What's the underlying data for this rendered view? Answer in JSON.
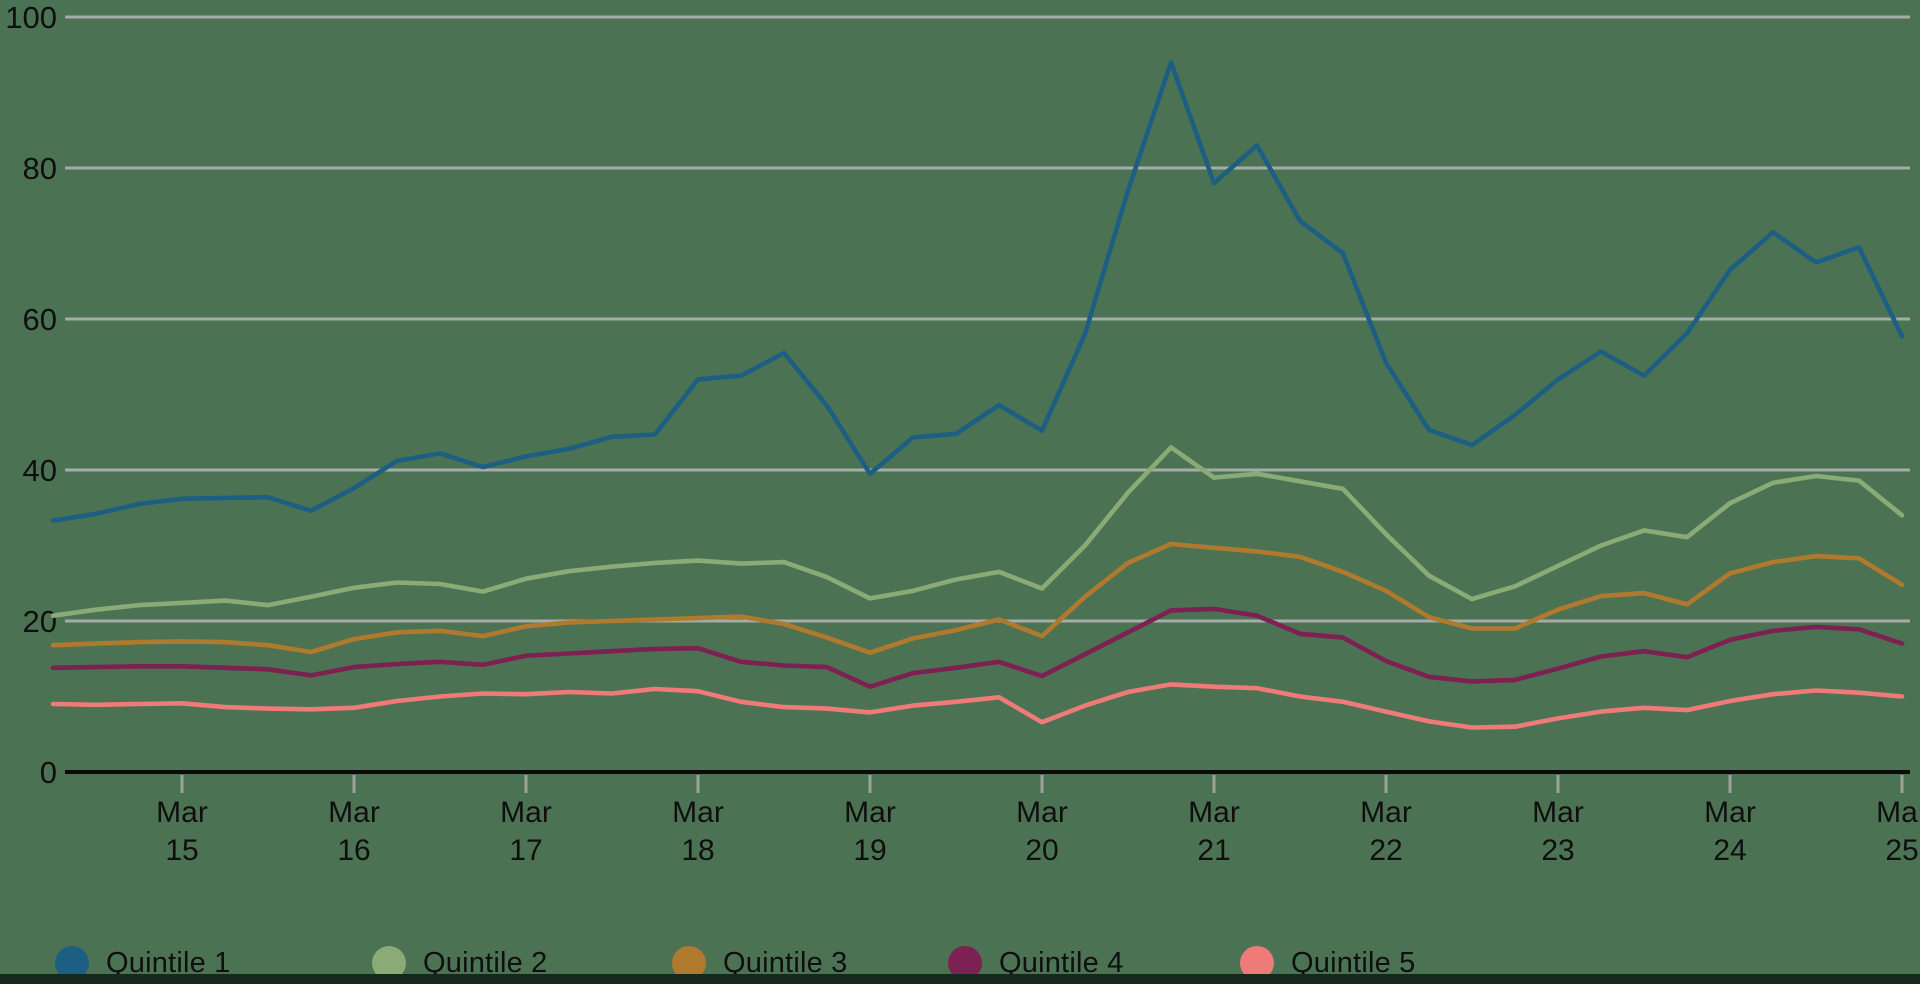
{
  "background_color": "#4c7254",
  "bottom_bar_color": "#16271d",
  "axis_color": "#0b0b0b",
  "grid_color": "#a6aca8",
  "tick_color": "#9aa29e",
  "text_color": "#0f0f0f",
  "chart_data": {
    "type": "line",
    "title": "",
    "grid": true,
    "legend_position": "bottom",
    "y_axis": {
      "range": [
        0,
        100
      ],
      "ticks": [
        0,
        20,
        40,
        60,
        80,
        100
      ]
    },
    "x_axis": {
      "tick_labels": [
        {
          "line1": "Mar",
          "line2": "15"
        },
        {
          "line1": "Mar",
          "line2": "16"
        },
        {
          "line1": "Mar",
          "line2": "17"
        },
        {
          "line1": "Mar",
          "line2": "18"
        },
        {
          "line1": "Mar",
          "line2": "19"
        },
        {
          "line1": "Mar",
          "line2": "20"
        },
        {
          "line1": "Mar",
          "line2": "21"
        },
        {
          "line1": "Mar",
          "line2": "22"
        },
        {
          "line1": "Mar",
          "line2": "23"
        },
        {
          "line1": "Mar",
          "line2": "24"
        },
        {
          "line1": "Mar",
          "line2": "25"
        }
      ],
      "samples_per_day": 4
    },
    "series": [
      {
        "name": "Quintile 1",
        "color": "#1c5f82",
        "values": [
          33.3,
          34.2,
          35.5,
          36.2,
          36.3,
          36.4,
          34.6,
          37.6,
          41.2,
          42.2,
          40.4,
          41.8,
          42.8,
          44.4,
          44.7,
          52.0,
          52.5,
          55.5,
          48.5,
          39.5,
          44.3,
          44.8,
          48.6,
          45.2,
          58.0,
          77.0,
          94.0,
          78.0,
          83.0,
          73.0,
          68.7,
          54.2,
          45.3,
          43.3,
          47.3,
          52.0,
          55.7,
          52.5,
          58.1,
          66.5,
          71.5,
          67.5,
          69.5,
          57.7
        ]
      },
      {
        "name": "Quintile 2",
        "color": "#8aab76",
        "values": [
          20.7,
          21.5,
          22.1,
          22.4,
          22.7,
          22.1,
          23.2,
          24.4,
          25.1,
          24.9,
          23.9,
          25.6,
          26.6,
          27.2,
          27.7,
          28.0,
          27.6,
          27.8,
          25.8,
          23.0,
          24.0,
          25.5,
          26.5,
          24.3,
          30.0,
          37.0,
          43.0,
          39.0,
          39.5,
          38.5,
          37.5,
          31.5,
          26.0,
          22.9,
          24.6,
          27.3,
          30.0,
          32.0,
          31.1,
          35.6,
          38.3,
          39.2,
          38.6,
          34.0
        ]
      },
      {
        "name": "Quintile 3",
        "color": "#b07a2e",
        "values": [
          16.8,
          17.0,
          17.2,
          17.3,
          17.2,
          16.8,
          15.9,
          17.6,
          18.5,
          18.7,
          18.0,
          19.3,
          19.8,
          20.0,
          20.2,
          20.4,
          20.6,
          19.6,
          17.8,
          15.8,
          17.7,
          18.8,
          20.2,
          18.0,
          23.2,
          27.7,
          30.2,
          29.7,
          29.2,
          28.5,
          26.5,
          24.0,
          20.5,
          19.0,
          19.0,
          21.5,
          23.3,
          23.7,
          22.2,
          26.3,
          27.8,
          28.6,
          28.3,
          24.8
        ]
      },
      {
        "name": "Quintile 4",
        "color": "#7d2052",
        "values": [
          13.8,
          13.9,
          14.0,
          14.0,
          13.8,
          13.6,
          12.8,
          13.9,
          14.3,
          14.6,
          14.2,
          15.4,
          15.7,
          16.0,
          16.3,
          16.4,
          14.6,
          14.1,
          13.9,
          11.3,
          13.1,
          13.8,
          14.6,
          12.7,
          15.6,
          18.5,
          21.4,
          21.6,
          20.7,
          18.3,
          17.8,
          14.7,
          12.6,
          12.0,
          12.2,
          13.7,
          15.3,
          16.0,
          15.2,
          17.5,
          18.7,
          19.2,
          18.9,
          17.0
        ]
      },
      {
        "name": "Quintile 5",
        "color": "#ee7b78",
        "values": [
          9.0,
          8.9,
          9.0,
          9.1,
          8.6,
          8.4,
          8.3,
          8.5,
          9.4,
          10.0,
          10.4,
          10.3,
          10.6,
          10.4,
          11.0,
          10.7,
          9.3,
          8.6,
          8.4,
          7.9,
          8.8,
          9.3,
          9.9,
          6.6,
          8.8,
          10.6,
          11.6,
          11.3,
          11.1,
          10.0,
          9.3,
          8.0,
          6.7,
          5.9,
          6.0,
          7.1,
          8.0,
          8.5,
          8.2,
          9.4,
          10.3,
          10.8,
          10.5,
          10.0
        ]
      }
    ]
  }
}
